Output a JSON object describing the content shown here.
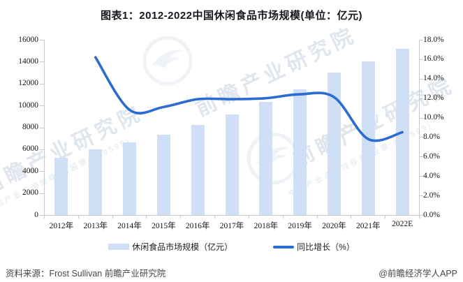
{
  "title": "图表1：2012-2022中国休闲食品市场规模(单位：亿元)",
  "chart_data": {
    "type": "bar",
    "subtype": "bar-line combo, dual axis",
    "categories": [
      "2012年",
      "2013年",
      "2014年",
      "2015年",
      "2016年",
      "2017年",
      "2018年",
      "2019年",
      "2020年",
      "2021年",
      "2022E"
    ],
    "series": [
      {
        "name": "休闲食品市场规模（亿元）",
        "type": "bar",
        "axis": "left",
        "color": "#cfe0f6",
        "values": [
          5200,
          6000,
          6600,
          7300,
          8200,
          9200,
          10300,
          11500,
          13000,
          14000,
          15200
        ]
      },
      {
        "name": "同比增长（%）",
        "type": "line",
        "axis": "right",
        "color": "#2b6bd2",
        "values": [
          null,
          16.2,
          10.8,
          11.1,
          11.9,
          11.9,
          12.0,
          12.4,
          12.1,
          7.8,
          8.5
        ]
      }
    ],
    "left_axis": {
      "min": 0,
      "max": 16000,
      "step": 2000,
      "tick_labels": [
        "0",
        "2000",
        "4000",
        "6000",
        "8000",
        "10000",
        "12000",
        "14000",
        "16000"
      ]
    },
    "right_axis": {
      "min": 0,
      "max": 18,
      "step": 2,
      "unit": "%",
      "tick_labels": [
        "0.0%",
        "2.0%",
        "4.0%",
        "6.0%",
        "8.0%",
        "10.0%",
        "12.0%",
        "14.0%",
        "16.0%",
        "18.0%"
      ]
    },
    "grid": false,
    "legend_position": "bottom"
  },
  "legend": [
    {
      "label": "休闲食品市场规模（亿元）",
      "swatch": "bar"
    },
    {
      "label": "同比增长（%）",
      "swatch": "line"
    }
  ],
  "watermark": {
    "brand": "前瞻产业研究院",
    "tagline": "中国产业咨询领导者(股票:839599)"
  },
  "footer": {
    "source": "资料来源：Frost Sullivan 前瞻产业研究院",
    "credit": "@前瞻经济学人APP"
  }
}
